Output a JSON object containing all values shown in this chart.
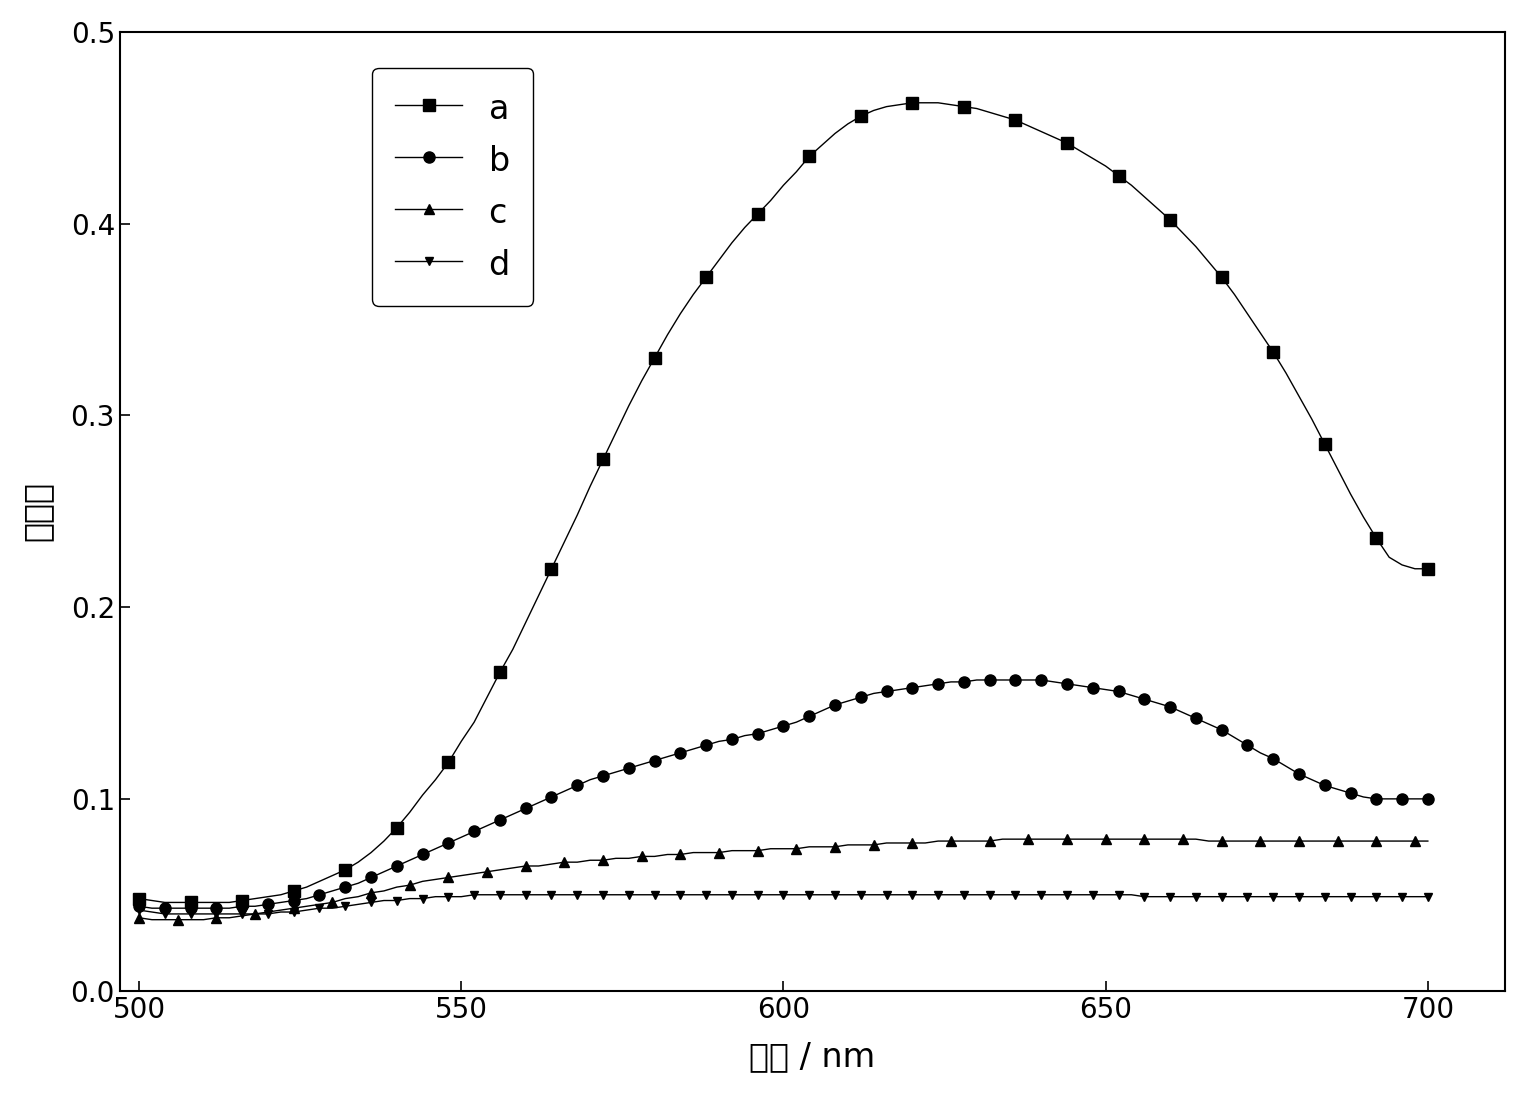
{
  "title": "",
  "xlabel": "波长 / nm",
  "ylabel": "吸光度",
  "xlim": [
    497,
    712
  ],
  "ylim": [
    0.0,
    0.5
  ],
  "xticks": [
    500,
    550,
    600,
    650,
    700
  ],
  "yticks": [
    0.0,
    0.1,
    0.2,
    0.3,
    0.4,
    0.5
  ],
  "legend_labels": [
    "a",
    "b",
    "c",
    "d"
  ],
  "line_color": "#000000",
  "series_a": {
    "x": [
      500,
      502,
      504,
      506,
      508,
      510,
      512,
      514,
      516,
      518,
      520,
      522,
      524,
      526,
      528,
      530,
      532,
      534,
      536,
      538,
      540,
      542,
      544,
      546,
      548,
      550,
      552,
      554,
      556,
      558,
      560,
      562,
      564,
      566,
      568,
      570,
      572,
      574,
      576,
      578,
      580,
      582,
      584,
      586,
      588,
      590,
      592,
      594,
      596,
      598,
      600,
      602,
      604,
      606,
      608,
      610,
      612,
      614,
      616,
      618,
      620,
      622,
      624,
      626,
      628,
      630,
      632,
      634,
      636,
      638,
      640,
      642,
      644,
      646,
      648,
      650,
      652,
      654,
      656,
      658,
      660,
      662,
      664,
      666,
      668,
      670,
      672,
      674,
      676,
      678,
      680,
      682,
      684,
      686,
      688,
      690,
      692,
      694,
      696,
      698,
      700
    ],
    "y": [
      0.048,
      0.047,
      0.046,
      0.046,
      0.046,
      0.046,
      0.046,
      0.046,
      0.047,
      0.048,
      0.049,
      0.05,
      0.052,
      0.054,
      0.057,
      0.06,
      0.063,
      0.067,
      0.072,
      0.078,
      0.085,
      0.093,
      0.102,
      0.11,
      0.119,
      0.13,
      0.14,
      0.153,
      0.166,
      0.178,
      0.192,
      0.206,
      0.22,
      0.234,
      0.248,
      0.263,
      0.277,
      0.291,
      0.305,
      0.318,
      0.33,
      0.342,
      0.353,
      0.363,
      0.372,
      0.381,
      0.39,
      0.398,
      0.405,
      0.412,
      0.42,
      0.427,
      0.435,
      0.441,
      0.447,
      0.452,
      0.456,
      0.459,
      0.461,
      0.462,
      0.463,
      0.463,
      0.463,
      0.462,
      0.461,
      0.46,
      0.458,
      0.456,
      0.454,
      0.451,
      0.448,
      0.445,
      0.442,
      0.438,
      0.434,
      0.43,
      0.425,
      0.42,
      0.414,
      0.408,
      0.402,
      0.395,
      0.388,
      0.38,
      0.372,
      0.363,
      0.353,
      0.343,
      0.333,
      0.322,
      0.31,
      0.298,
      0.285,
      0.272,
      0.259,
      0.247,
      0.236,
      0.226,
      0.222,
      0.22,
      0.22
    ]
  },
  "series_b": {
    "x": [
      500,
      502,
      504,
      506,
      508,
      510,
      512,
      514,
      516,
      518,
      520,
      522,
      524,
      526,
      528,
      530,
      532,
      534,
      536,
      538,
      540,
      542,
      544,
      546,
      548,
      550,
      552,
      554,
      556,
      558,
      560,
      562,
      564,
      566,
      568,
      570,
      572,
      574,
      576,
      578,
      580,
      582,
      584,
      586,
      588,
      590,
      592,
      594,
      596,
      598,
      600,
      602,
      604,
      606,
      608,
      610,
      612,
      614,
      616,
      618,
      620,
      622,
      624,
      626,
      628,
      630,
      632,
      634,
      636,
      638,
      640,
      642,
      644,
      646,
      648,
      650,
      652,
      654,
      656,
      658,
      660,
      662,
      664,
      666,
      668,
      670,
      672,
      674,
      676,
      678,
      680,
      682,
      684,
      686,
      688,
      690,
      692,
      694,
      696,
      698,
      700
    ],
    "y": [
      0.044,
      0.043,
      0.043,
      0.043,
      0.043,
      0.043,
      0.043,
      0.043,
      0.044,
      0.044,
      0.045,
      0.046,
      0.047,
      0.048,
      0.05,
      0.052,
      0.054,
      0.056,
      0.059,
      0.062,
      0.065,
      0.068,
      0.071,
      0.074,
      0.077,
      0.08,
      0.083,
      0.086,
      0.089,
      0.092,
      0.095,
      0.098,
      0.101,
      0.104,
      0.107,
      0.11,
      0.112,
      0.114,
      0.116,
      0.118,
      0.12,
      0.122,
      0.124,
      0.126,
      0.128,
      0.13,
      0.131,
      0.133,
      0.134,
      0.136,
      0.138,
      0.14,
      0.143,
      0.146,
      0.149,
      0.151,
      0.153,
      0.155,
      0.156,
      0.157,
      0.158,
      0.159,
      0.16,
      0.161,
      0.161,
      0.162,
      0.162,
      0.162,
      0.162,
      0.162,
      0.162,
      0.161,
      0.16,
      0.159,
      0.158,
      0.157,
      0.156,
      0.154,
      0.152,
      0.15,
      0.148,
      0.145,
      0.142,
      0.139,
      0.136,
      0.132,
      0.128,
      0.124,
      0.121,
      0.117,
      0.113,
      0.11,
      0.107,
      0.105,
      0.103,
      0.101,
      0.1,
      0.1,
      0.1,
      0.1,
      0.1
    ]
  },
  "series_c": {
    "x": [
      500,
      502,
      504,
      506,
      508,
      510,
      512,
      514,
      516,
      518,
      520,
      522,
      524,
      526,
      528,
      530,
      532,
      534,
      536,
      538,
      540,
      542,
      544,
      546,
      548,
      550,
      552,
      554,
      556,
      558,
      560,
      562,
      564,
      566,
      568,
      570,
      572,
      574,
      576,
      578,
      580,
      582,
      584,
      586,
      588,
      590,
      592,
      594,
      596,
      598,
      600,
      602,
      604,
      606,
      608,
      610,
      612,
      614,
      616,
      618,
      620,
      622,
      624,
      626,
      628,
      630,
      632,
      634,
      636,
      638,
      640,
      642,
      644,
      646,
      648,
      650,
      652,
      654,
      656,
      658,
      660,
      662,
      664,
      666,
      668,
      670,
      672,
      674,
      676,
      678,
      680,
      682,
      684,
      686,
      688,
      690,
      692,
      694,
      696,
      698,
      700
    ],
    "y": [
      0.038,
      0.037,
      0.037,
      0.037,
      0.037,
      0.037,
      0.038,
      0.038,
      0.039,
      0.04,
      0.041,
      0.042,
      0.043,
      0.044,
      0.045,
      0.046,
      0.048,
      0.049,
      0.051,
      0.052,
      0.054,
      0.055,
      0.057,
      0.058,
      0.059,
      0.06,
      0.061,
      0.062,
      0.063,
      0.064,
      0.065,
      0.065,
      0.066,
      0.067,
      0.067,
      0.068,
      0.068,
      0.069,
      0.069,
      0.07,
      0.07,
      0.071,
      0.071,
      0.072,
      0.072,
      0.072,
      0.073,
      0.073,
      0.073,
      0.074,
      0.074,
      0.074,
      0.075,
      0.075,
      0.075,
      0.076,
      0.076,
      0.076,
      0.077,
      0.077,
      0.077,
      0.077,
      0.078,
      0.078,
      0.078,
      0.078,
      0.078,
      0.079,
      0.079,
      0.079,
      0.079,
      0.079,
      0.079,
      0.079,
      0.079,
      0.079,
      0.079,
      0.079,
      0.079,
      0.079,
      0.079,
      0.079,
      0.079,
      0.078,
      0.078,
      0.078,
      0.078,
      0.078,
      0.078,
      0.078,
      0.078,
      0.078,
      0.078,
      0.078,
      0.078,
      0.078,
      0.078,
      0.078,
      0.078,
      0.078,
      0.078
    ]
  },
  "series_d": {
    "x": [
      500,
      502,
      504,
      506,
      508,
      510,
      512,
      514,
      516,
      518,
      520,
      522,
      524,
      526,
      528,
      530,
      532,
      534,
      536,
      538,
      540,
      542,
      544,
      546,
      548,
      550,
      552,
      554,
      556,
      558,
      560,
      562,
      564,
      566,
      568,
      570,
      572,
      574,
      576,
      578,
      580,
      582,
      584,
      586,
      588,
      590,
      592,
      594,
      596,
      598,
      600,
      602,
      604,
      606,
      608,
      610,
      612,
      614,
      616,
      618,
      620,
      622,
      624,
      626,
      628,
      630,
      632,
      634,
      636,
      638,
      640,
      642,
      644,
      646,
      648,
      650,
      652,
      654,
      656,
      658,
      660,
      662,
      664,
      666,
      668,
      670,
      672,
      674,
      676,
      678,
      680,
      682,
      684,
      686,
      688,
      690,
      692,
      694,
      696,
      698,
      700
    ],
    "y": [
      0.042,
      0.041,
      0.04,
      0.04,
      0.04,
      0.04,
      0.04,
      0.04,
      0.04,
      0.04,
      0.04,
      0.041,
      0.041,
      0.042,
      0.043,
      0.043,
      0.044,
      0.045,
      0.046,
      0.047,
      0.047,
      0.048,
      0.048,
      0.049,
      0.049,
      0.049,
      0.05,
      0.05,
      0.05,
      0.05,
      0.05,
      0.05,
      0.05,
      0.05,
      0.05,
      0.05,
      0.05,
      0.05,
      0.05,
      0.05,
      0.05,
      0.05,
      0.05,
      0.05,
      0.05,
      0.05,
      0.05,
      0.05,
      0.05,
      0.05,
      0.05,
      0.05,
      0.05,
      0.05,
      0.05,
      0.05,
      0.05,
      0.05,
      0.05,
      0.05,
      0.05,
      0.05,
      0.05,
      0.05,
      0.05,
      0.05,
      0.05,
      0.05,
      0.05,
      0.05,
      0.05,
      0.05,
      0.05,
      0.05,
      0.05,
      0.05,
      0.05,
      0.05,
      0.049,
      0.049,
      0.049,
      0.049,
      0.049,
      0.049,
      0.049,
      0.049,
      0.049,
      0.049,
      0.049,
      0.049,
      0.049,
      0.049,
      0.049,
      0.049,
      0.049,
      0.049,
      0.049,
      0.049,
      0.049,
      0.049,
      0.049
    ]
  },
  "marker_a_every": 4,
  "marker_b_every": 2,
  "marker_c_every": 3,
  "marker_d_every": 2,
  "font_path_candidates": []
}
